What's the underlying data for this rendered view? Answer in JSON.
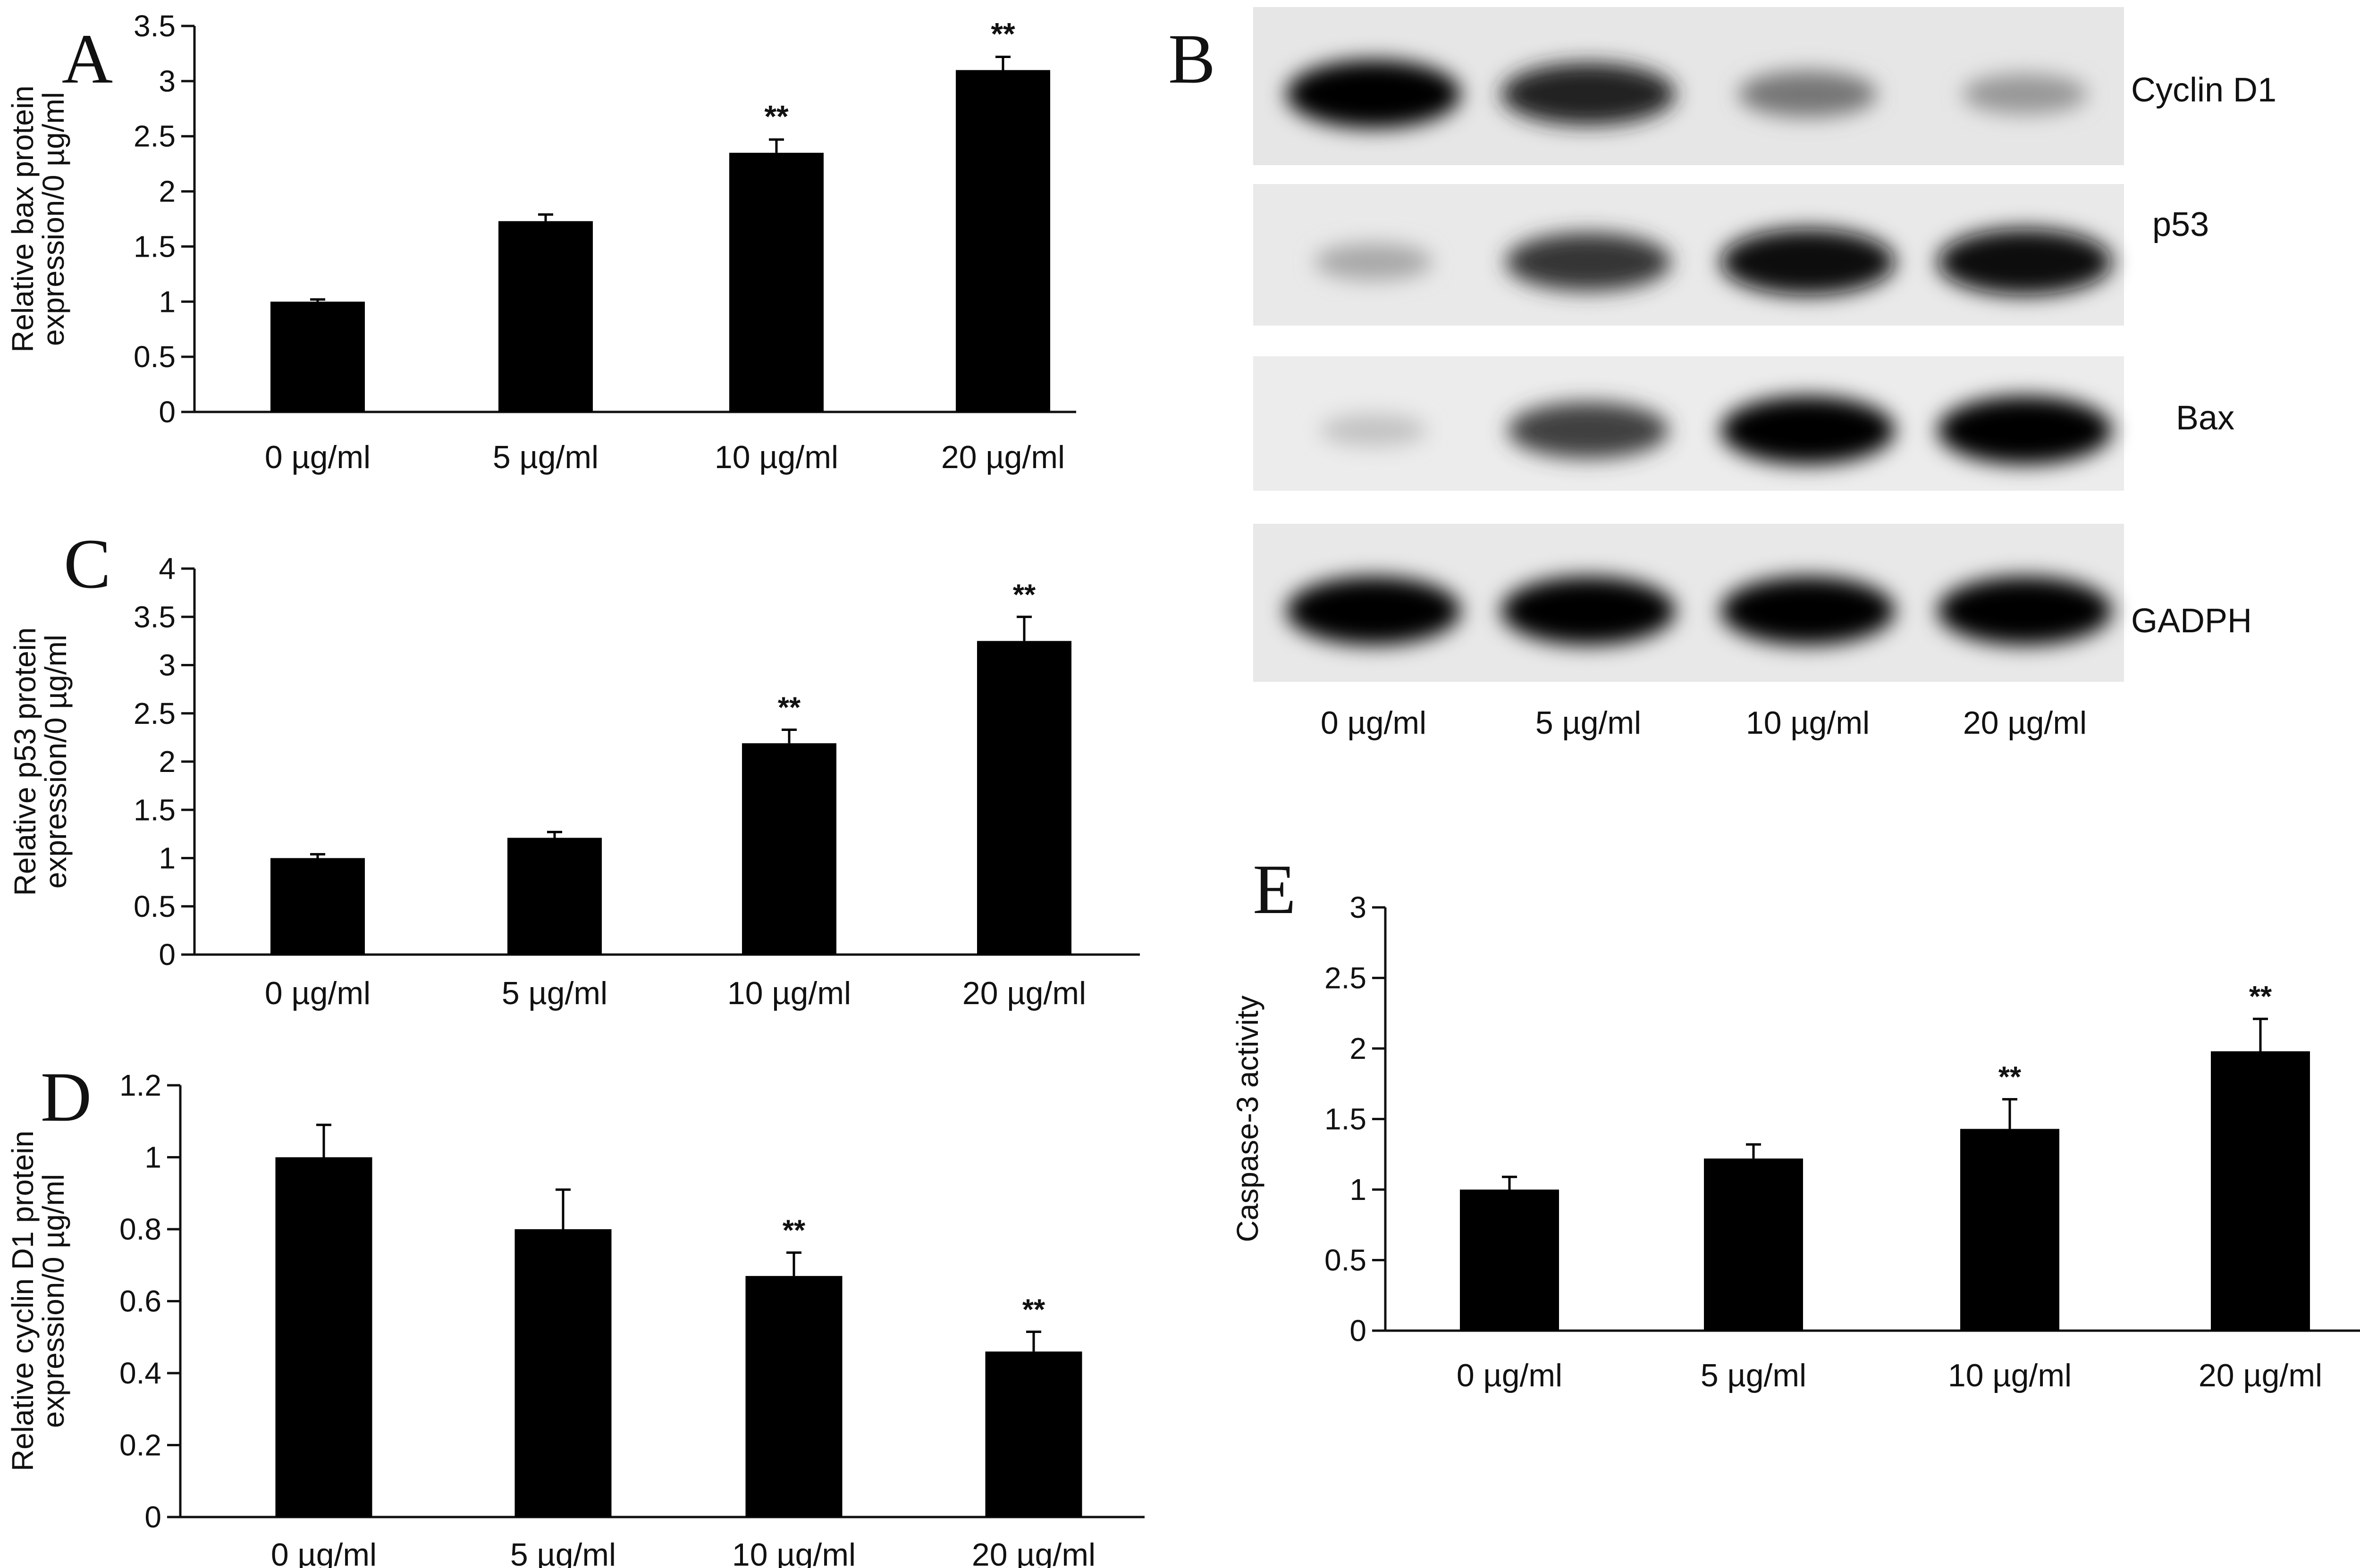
{
  "chart_data": [
    {
      "panel": "A",
      "type": "bar",
      "categories": [
        "0 µg/ml",
        "5 µg/ml",
        "10 µg/ml",
        "20 µg/ml"
      ],
      "values": [
        1.0,
        1.73,
        2.35,
        3.1
      ],
      "errors": [
        0.02,
        0.06,
        0.12,
        0.12
      ],
      "significance": [
        "",
        "",
        "**",
        "**"
      ],
      "ylabel_lines": [
        "Relative bax protein",
        "expression/0 µg/ml"
      ],
      "ylim": [
        0,
        3.5
      ],
      "yticks": [
        "0",
        "0.5",
        "1",
        "1.5",
        "2",
        "2.5",
        "3",
        "3.5"
      ]
    },
    {
      "panel": "C",
      "type": "bar",
      "categories": [
        "0 µg/ml",
        "5 µg/ml",
        "10 µg/ml",
        "20 µg/ml"
      ],
      "values": [
        1.0,
        1.21,
        2.19,
        3.25
      ],
      "errors": [
        0.04,
        0.06,
        0.14,
        0.25
      ],
      "significance": [
        "",
        "",
        "**",
        "**"
      ],
      "ylabel_lines": [
        "Relative p53 protein",
        "expression/0 µg/ml"
      ],
      "ylim": [
        0,
        4
      ],
      "yticks": [
        "0",
        "0.5",
        "1",
        "1.5",
        "2",
        "2.5",
        "3",
        "3.5",
        "4"
      ]
    },
    {
      "panel": "D",
      "type": "bar",
      "categories": [
        "0 µg/ml",
        "5 µg/ml",
        "10 µg/ml",
        "20 µg/ml"
      ],
      "values": [
        1.0,
        0.8,
        0.67,
        0.46
      ],
      "errors": [
        0.09,
        0.11,
        0.065,
        0.055
      ],
      "significance": [
        "",
        "",
        "**",
        "**"
      ],
      "ylabel_lines": [
        "Relative cyclin D1 protein",
        "expression/0 µg/ml"
      ],
      "ylim": [
        0,
        1.2
      ],
      "yticks": [
        "0",
        "0.2",
        "0.4",
        "0.6",
        "0.8",
        "1",
        "1.2"
      ]
    },
    {
      "panel": "E",
      "type": "bar",
      "categories": [
        "0 µg/ml",
        "5 µg/ml",
        "10 µg/ml",
        "20 µg/ml"
      ],
      "values": [
        1.0,
        1.22,
        1.43,
        1.98
      ],
      "errors": [
        0.09,
        0.1,
        0.21,
        0.23
      ],
      "significance": [
        "",
        "",
        "**",
        "**"
      ],
      "ylabel_lines": [
        "Caspase-3 activity"
      ],
      "ylim": [
        0,
        3
      ],
      "yticks": [
        "0",
        "0.5",
        "1",
        "1.5",
        "2",
        "2.5",
        "3"
      ]
    }
  ],
  "blot": {
    "panel": "B",
    "lanes": [
      "0 µg/ml",
      "5  µg/ml",
      "10 µg/ml",
      "20 µg/ml"
    ],
    "rows": [
      {
        "label": "Cyclin D1",
        "intensities": [
          1.0,
          0.85,
          0.45,
          0.3
        ]
      },
      {
        "label": "p53",
        "intensities": [
          0.22,
          0.75,
          0.95,
          0.95
        ]
      },
      {
        "label": "Bax",
        "intensities": [
          0.1,
          0.7,
          1.0,
          1.0
        ]
      },
      {
        "label": "GADPH",
        "intensities": [
          1.0,
          1.0,
          1.0,
          1.0
        ]
      }
    ]
  }
}
